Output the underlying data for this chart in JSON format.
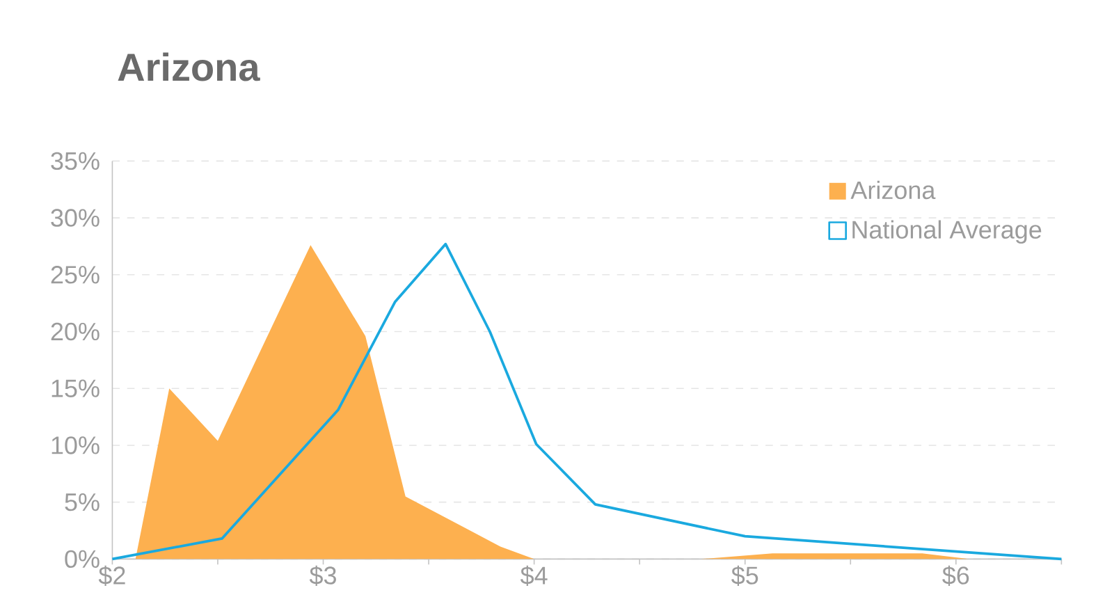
{
  "chart_data": {
    "type": "area",
    "title": "Arizona",
    "series": [
      {
        "name": "Arizona",
        "color": "#fdb04f",
        "x": [
          2.11,
          2.27,
          2.5,
          2.94,
          3.2,
          3.39,
          3.84,
          4.0,
          4.79,
          5.13,
          5.84,
          6.06,
          6.5
        ],
        "values": [
          0,
          15,
          10.4,
          27.6,
          19.6,
          5.5,
          1.1,
          0,
          0,
          0.5,
          0.5,
          0,
          0
        ]
      },
      {
        "name": "National Average",
        "type": "line",
        "color": "#1aa9df",
        "x": [
          2.0,
          2.52,
          3.07,
          3.34,
          3.58,
          3.79,
          4.01,
          4.29,
          5.0,
          6.5
        ],
        "values": [
          0,
          1.8,
          13.1,
          22.6,
          27.7,
          20,
          10.1,
          4.8,
          2.0,
          0
        ]
      }
    ],
    "xlim": [
      2,
      6.5
    ],
    "xticks": [
      {
        "value": 2,
        "label": "$2"
      },
      {
        "value": 2.5,
        "label": null
      },
      {
        "value": 3,
        "label": "$3"
      },
      {
        "value": 3.5,
        "label": null
      },
      {
        "value": 4,
        "label": "$4"
      },
      {
        "value": 4.5,
        "label": null
      },
      {
        "value": 5,
        "label": "$5"
      },
      {
        "value": 5.5,
        "label": null
      },
      {
        "value": 6,
        "label": "$6"
      },
      {
        "value": 6.5,
        "label": null
      }
    ],
    "ylim": [
      0,
      35
    ],
    "yticks": [
      {
        "value": 0,
        "label": "0%"
      },
      {
        "value": 5,
        "label": "5%"
      },
      {
        "value": 10,
        "label": "10%"
      },
      {
        "value": 15,
        "label": "15%"
      },
      {
        "value": 20,
        "label": "20%"
      },
      {
        "value": 25,
        "label": "25%"
      },
      {
        "value": 30,
        "label": "30%"
      },
      {
        "value": 35,
        "label": "35%"
      }
    ],
    "grid": "y",
    "legend": "top right",
    "marker": "none"
  }
}
